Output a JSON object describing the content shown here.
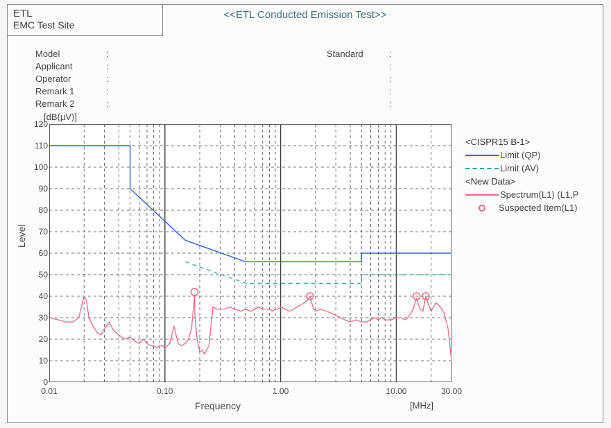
{
  "titlebox": {
    "line1": "ETL",
    "line2": "EMC Test Site"
  },
  "main_title": "<<ETL Conducted Emission Test>>",
  "meta_left": [
    {
      "label": "Model",
      "value": ""
    },
    {
      "label": "Applicant",
      "value": ""
    },
    {
      "label": "Operator",
      "value": ""
    },
    {
      "label": "Remark 1",
      "value": ""
    },
    {
      "label": "Remark 2",
      "value": ""
    }
  ],
  "meta_right": [
    {
      "label": "Standard",
      "value": ""
    },
    {
      "label": "",
      "value": ""
    },
    {
      "label": "",
      "value": ""
    },
    {
      "label": "",
      "value": ""
    },
    {
      "label": "",
      "value": ""
    }
  ],
  "chart": {
    "type": "line",
    "y_unit_label": "[dB(µV)]",
    "ylabel": "Level",
    "xlabel": "Frequency",
    "x_unit_label": "[MHz]",
    "ylim": [
      0,
      120
    ],
    "ytick_step": 10,
    "x_log": true,
    "x_min": 0.01,
    "x_max": 30.0,
    "x_major_ticks": [
      0.01,
      0.1,
      1.0,
      10.0,
      30.0
    ],
    "x_major_labels": [
      "0.01",
      "0.10",
      "1.00",
      "10.00",
      "30.00"
    ],
    "background_color": "#ffffff",
    "axis_color": "#333333",
    "grid_color": "#444444",
    "grid_dash": "4,4",
    "limit_qp": {
      "color": "#2b5fd8",
      "width": 1.4,
      "points": [
        [
          0.01,
          110
        ],
        [
          0.05,
          110
        ],
        [
          0.05,
          90
        ],
        [
          0.15,
          66
        ],
        [
          0.5,
          56
        ],
        [
          5.0,
          56
        ],
        [
          5.0,
          60
        ],
        [
          30.0,
          60
        ]
      ]
    },
    "limit_av": {
      "color": "#27a9a0",
      "width": 1.2,
      "dash": "6,5",
      "points": [
        [
          0.15,
          56
        ],
        [
          0.5,
          46
        ],
        [
          5.0,
          46
        ],
        [
          5.0,
          50
        ],
        [
          30.0,
          50
        ]
      ]
    },
    "spectrum": {
      "color": "#e86a84",
      "width": 1.3,
      "points": [
        [
          0.01,
          30
        ],
        [
          0.012,
          29
        ],
        [
          0.014,
          28
        ],
        [
          0.016,
          28
        ],
        [
          0.018,
          30
        ],
        [
          0.02,
          40
        ],
        [
          0.021,
          38
        ],
        [
          0.022,
          30
        ],
        [
          0.024,
          26
        ],
        [
          0.026,
          23
        ],
        [
          0.028,
          22
        ],
        [
          0.03,
          25
        ],
        [
          0.033,
          28
        ],
        [
          0.036,
          24
        ],
        [
          0.04,
          22
        ],
        [
          0.045,
          20
        ],
        [
          0.05,
          21
        ],
        [
          0.055,
          19
        ],
        [
          0.06,
          18
        ],
        [
          0.065,
          20
        ],
        [
          0.07,
          18
        ],
        [
          0.075,
          17
        ],
        [
          0.08,
          17
        ],
        [
          0.085,
          16
        ],
        [
          0.09,
          17
        ],
        [
          0.095,
          17
        ],
        [
          0.1,
          16
        ],
        [
          0.11,
          18
        ],
        [
          0.12,
          26
        ],
        [
          0.13,
          18
        ],
        [
          0.14,
          17
        ],
        [
          0.15,
          18
        ],
        [
          0.16,
          20
        ],
        [
          0.17,
          25
        ],
        [
          0.18,
          40
        ],
        [
          0.182,
          30
        ],
        [
          0.19,
          20
        ],
        [
          0.2,
          14
        ],
        [
          0.21,
          15
        ],
        [
          0.22,
          13
        ],
        [
          0.24,
          17
        ],
        [
          0.26,
          35
        ],
        [
          0.28,
          34
        ],
        [
          0.3,
          34
        ],
        [
          0.33,
          34
        ],
        [
          0.36,
          35
        ],
        [
          0.4,
          34
        ],
        [
          0.45,
          33
        ],
        [
          0.5,
          34
        ],
        [
          0.55,
          33
        ],
        [
          0.6,
          34
        ],
        [
          0.65,
          35
        ],
        [
          0.7,
          34
        ],
        [
          0.75,
          34
        ],
        [
          0.8,
          34
        ],
        [
          0.85,
          33
        ],
        [
          0.9,
          34
        ],
        [
          0.95,
          34
        ],
        [
          1.0,
          35
        ],
        [
          1.1,
          34
        ],
        [
          1.2,
          33
        ],
        [
          1.3,
          34
        ],
        [
          1.5,
          36
        ],
        [
          1.7,
          38
        ],
        [
          1.8,
          40
        ],
        [
          1.9,
          35
        ],
        [
          2.0,
          33
        ],
        [
          2.2,
          34
        ],
        [
          2.5,
          33
        ],
        [
          2.8,
          32
        ],
        [
          3.0,
          31
        ],
        [
          3.3,
          30
        ],
        [
          3.6,
          29
        ],
        [
          4.0,
          28
        ],
        [
          4.5,
          29
        ],
        [
          5.0,
          28
        ],
        [
          5.5,
          28
        ],
        [
          6.0,
          29
        ],
        [
          6.5,
          30
        ],
        [
          7.0,
          29
        ],
        [
          7.5,
          30
        ],
        [
          8.0,
          29
        ],
        [
          9.0,
          29
        ],
        [
          10.0,
          30
        ],
        [
          11.0,
          30
        ],
        [
          12.0,
          29
        ],
        [
          13.0,
          31
        ],
        [
          14.0,
          34
        ],
        [
          15.0,
          39
        ],
        [
          16.0,
          34
        ],
        [
          17.0,
          33
        ],
        [
          18.0,
          40
        ],
        [
          19.0,
          36
        ],
        [
          20.0,
          33
        ],
        [
          22.0,
          37
        ],
        [
          24.0,
          35
        ],
        [
          26.0,
          32
        ],
        [
          28.0,
          25
        ],
        [
          30.0,
          10
        ]
      ]
    },
    "suspected": {
      "color": "#e86a84",
      "marker_radius": 5,
      "points": [
        [
          0.18,
          42
        ],
        [
          1.8,
          40
        ],
        [
          15.0,
          40
        ],
        [
          18.0,
          40
        ]
      ]
    }
  },
  "legend": {
    "group1_title": "<CISPR15 B-1>",
    "qp_label": "Limit (QP)",
    "av_label": "Limit (AV)",
    "group2_title": "<New Data>",
    "spectrum_label": "Spectrum(L1) (L1,P",
    "suspected_label": "Suspected Item(L1)"
  }
}
